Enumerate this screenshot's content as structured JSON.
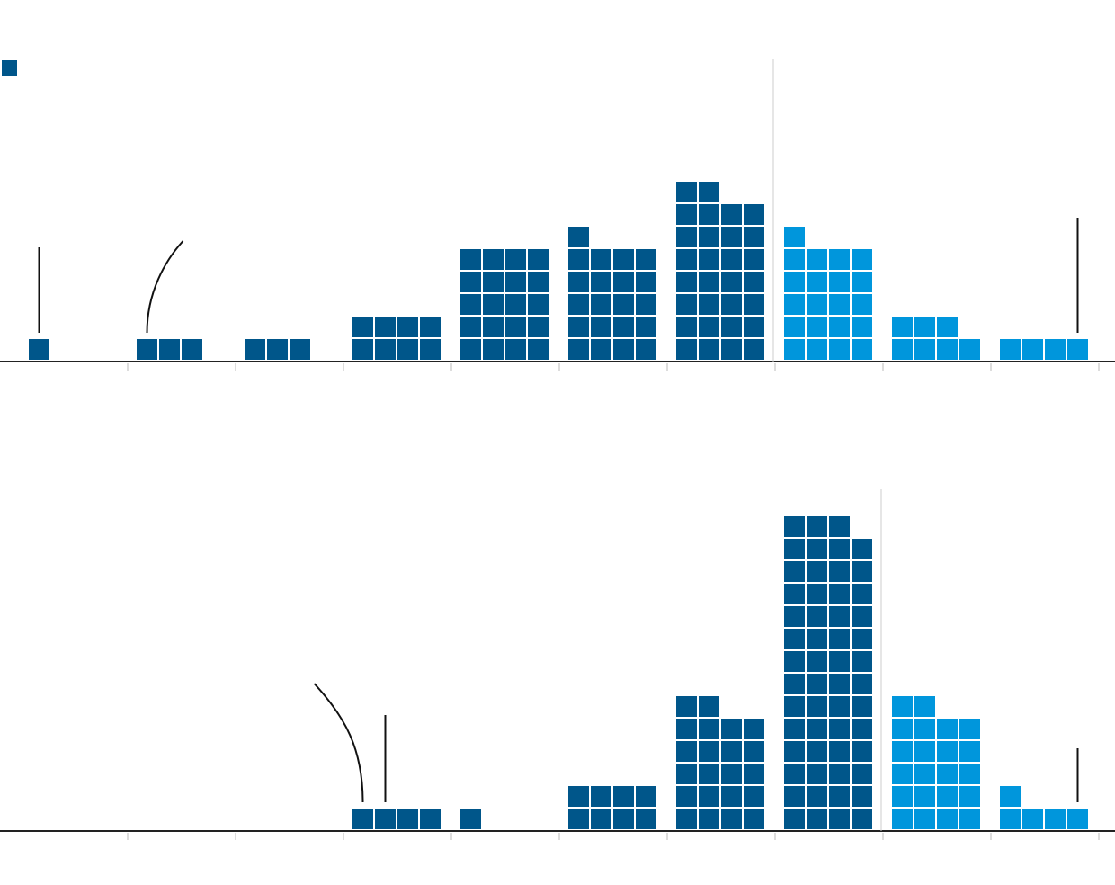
{
  "colors": {
    "dark_blue": "#00568a",
    "light_blue": "#0096dc",
    "axis": "#222222",
    "tick": "#bbbbbb",
    "divider": "#cccccc",
    "annotation_line": "#111111"
  },
  "legend": {
    "marker_color": "#00568a"
  },
  "chart_data": [
    {
      "type": "bar",
      "style": "unit-waffle-histogram",
      "units_per_column_row": 4,
      "bins": [
        {
          "index": 0,
          "count": 1,
          "highlight": false
        },
        {
          "index": 1,
          "count": 3,
          "highlight": false
        },
        {
          "index": 2,
          "count": 3,
          "highlight": false
        },
        {
          "index": 3,
          "count": 8,
          "highlight": false
        },
        {
          "index": 4,
          "count": 20,
          "highlight": false
        },
        {
          "index": 5,
          "count": 21,
          "highlight": false
        },
        {
          "index": 6,
          "count": 30,
          "highlight": false
        },
        {
          "index": 7,
          "count": 21,
          "highlight": true
        },
        {
          "index": 8,
          "count": 7,
          "highlight": true
        },
        {
          "index": 9,
          "count": 4,
          "highlight": true
        }
      ],
      "divider_after_bin": 6,
      "annotations": [
        {
          "bin": 0,
          "unit": 0,
          "shape": "straight"
        },
        {
          "bin": 1,
          "unit": 0,
          "shape": "curve"
        },
        {
          "bin": 9,
          "unit": 3,
          "shape": "straight"
        }
      ]
    },
    {
      "type": "bar",
      "style": "unit-waffle-histogram",
      "units_per_column_row": 4,
      "bins": [
        {
          "index": 0,
          "count": 0,
          "highlight": false
        },
        {
          "index": 1,
          "count": 0,
          "highlight": false
        },
        {
          "index": 2,
          "count": 0,
          "highlight": false
        },
        {
          "index": 3,
          "count": 4,
          "highlight": false
        },
        {
          "index": 4,
          "count": 1,
          "highlight": false
        },
        {
          "index": 5,
          "count": 8,
          "highlight": false
        },
        {
          "index": 6,
          "count": 22,
          "highlight": false
        },
        {
          "index": 7,
          "count": 55,
          "highlight": false
        },
        {
          "index": 8,
          "count": 22,
          "highlight": true
        },
        {
          "index": 9,
          "count": 5,
          "highlight": true
        }
      ],
      "divider_after_bin": 7,
      "annotations": [
        {
          "bin": 3,
          "unit": 0,
          "shape": "curve"
        },
        {
          "bin": 3,
          "unit": 1,
          "shape": "straight"
        },
        {
          "bin": 9,
          "unit": 3,
          "shape": "straight"
        }
      ]
    }
  ]
}
